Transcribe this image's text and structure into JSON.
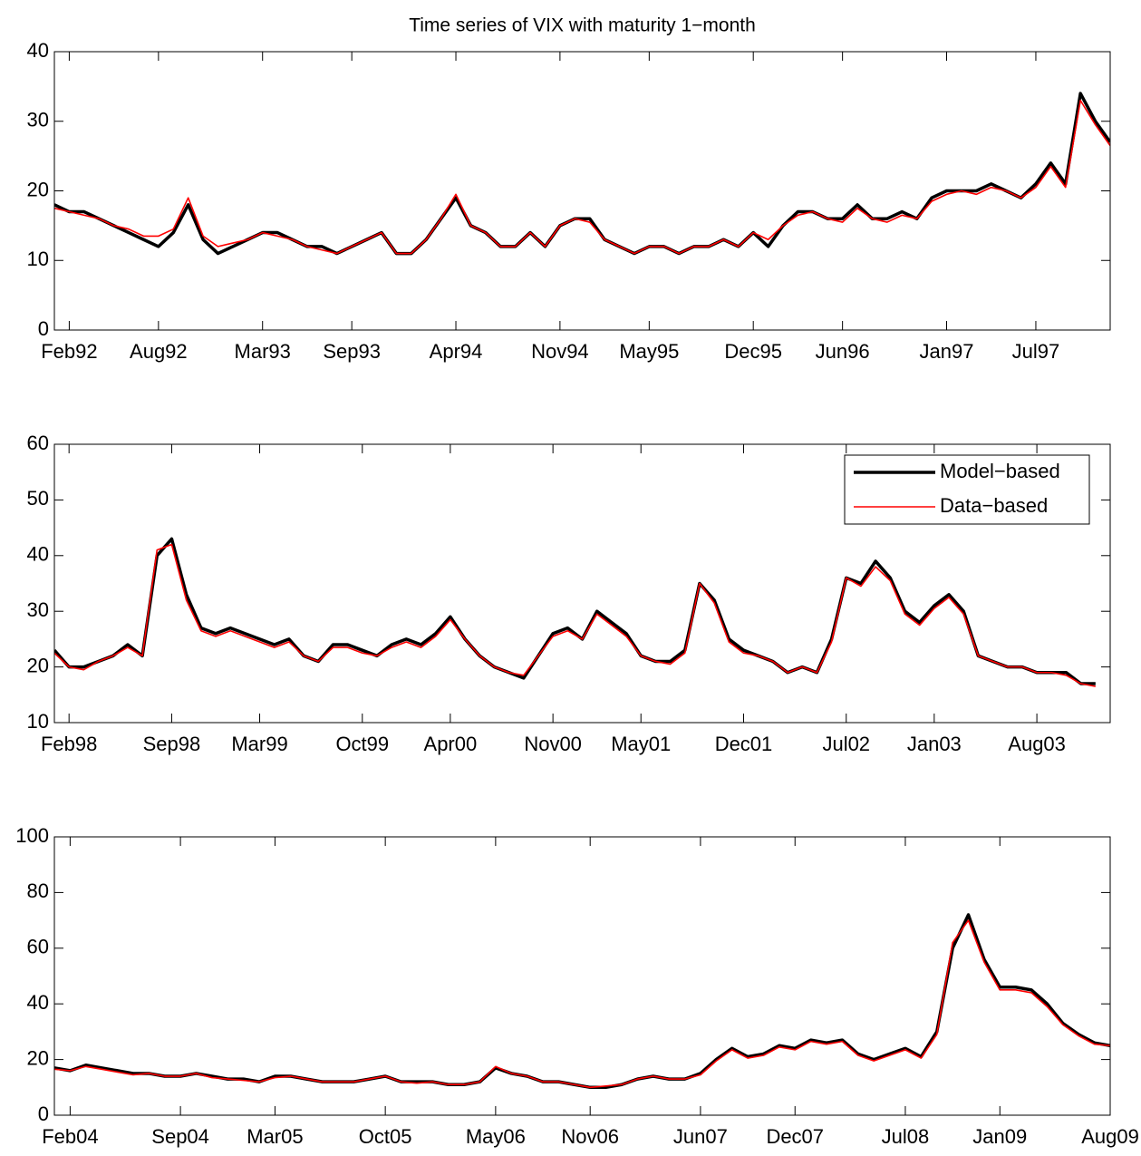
{
  "chart_data": [
    {
      "type": "line",
      "title": "Time series of VIX with maturity 1−month",
      "x": [
        "1992-01",
        "1992-02",
        "1992-03",
        "1992-04",
        "1992-05",
        "1992-06",
        "1992-07",
        "1992-08",
        "1992-09",
        "1992-10",
        "1992-11",
        "1992-12",
        "1993-01",
        "1993-02",
        "1993-03",
        "1993-04",
        "1993-05",
        "1993-06",
        "1993-07",
        "1993-08",
        "1993-09",
        "1993-10",
        "1993-11",
        "1993-12",
        "1994-01",
        "1994-02",
        "1994-03",
        "1994-04",
        "1994-05",
        "1994-06",
        "1994-07",
        "1994-08",
        "1994-09",
        "1994-10",
        "1994-11",
        "1994-12",
        "1995-01",
        "1995-02",
        "1995-03",
        "1995-04",
        "1995-05",
        "1995-06",
        "1995-07",
        "1995-08",
        "1995-09",
        "1995-10",
        "1995-11",
        "1995-12",
        "1996-01",
        "1996-02",
        "1996-03",
        "1996-04",
        "1996-05",
        "1996-06",
        "1996-07",
        "1996-08",
        "1996-09",
        "1996-10",
        "1996-11",
        "1996-12",
        "1997-01",
        "1997-02",
        "1997-03",
        "1997-04",
        "1997-05",
        "1997-06",
        "1997-07",
        "1997-08",
        "1997-09",
        "1997-10",
        "1997-11",
        "1997-12"
      ],
      "series": [
        {
          "name": "Model−based",
          "color": "#000000",
          "values": [
            18,
            17,
            17,
            16,
            15,
            14,
            13,
            12,
            14,
            18,
            13,
            11,
            12,
            13,
            14,
            14,
            13,
            12,
            12,
            11,
            12,
            13,
            14,
            11,
            11,
            13,
            16,
            19,
            15,
            14,
            12,
            12,
            14,
            12,
            15,
            16,
            16,
            13,
            12,
            11,
            12,
            12,
            11,
            12,
            12,
            13,
            12,
            14,
            12,
            15,
            17,
            17,
            16,
            16,
            18,
            16,
            16,
            17,
            16,
            19,
            20,
            20,
            20,
            21,
            20,
            19,
            21,
            24,
            21,
            34,
            30,
            27
          ]
        },
        {
          "name": "Data−based",
          "color": "#ff0000",
          "values": [
            17.5,
            17,
            16.5,
            16,
            15,
            14.5,
            13.5,
            13.5,
            14.5,
            19,
            13.5,
            12,
            12.5,
            13,
            14,
            13.5,
            13,
            12,
            11.5,
            11,
            12,
            13,
            14,
            11,
            11,
            13,
            16,
            19.5,
            15,
            14,
            12,
            12,
            14,
            12,
            15,
            16,
            15.5,
            13,
            12,
            11,
            12,
            12,
            11,
            12,
            12,
            13,
            12,
            14,
            13,
            15,
            16.5,
            17,
            16,
            15.5,
            17.5,
            16,
            15.5,
            16.5,
            16,
            18.5,
            19.5,
            20,
            19.5,
            20.5,
            20,
            19,
            20.5,
            23.5,
            20.5,
            33,
            29.5,
            26.5
          ]
        }
      ],
      "xlim": [
        "1992-01",
        "1997-12"
      ],
      "xticks": [
        {
          "value": "1992-02",
          "label": "Feb92"
        },
        {
          "value": "1992-08",
          "label": "Aug92"
        },
        {
          "value": "1993-03",
          "label": "Mar93"
        },
        {
          "value": "1993-09",
          "label": "Sep93"
        },
        {
          "value": "1994-04",
          "label": "Apr94"
        },
        {
          "value": "1994-11",
          "label": "Nov94"
        },
        {
          "value": "1995-05",
          "label": "May95"
        },
        {
          "value": "1995-12",
          "label": "Dec95"
        },
        {
          "value": "1996-06",
          "label": "Jun96"
        },
        {
          "value": "1997-01",
          "label": "Jan97"
        },
        {
          "value": "1997-07",
          "label": "Jul97"
        }
      ],
      "ylim": [
        0,
        40
      ],
      "yticks": [
        0,
        10,
        20,
        30,
        40
      ]
    },
    {
      "type": "line",
      "x": [
        "1998-01",
        "1998-02",
        "1998-03",
        "1998-04",
        "1998-05",
        "1998-06",
        "1998-07",
        "1998-08",
        "1998-09",
        "1998-10",
        "1998-11",
        "1998-12",
        "1999-01",
        "1999-02",
        "1999-03",
        "1999-04",
        "1999-05",
        "1999-06",
        "1999-07",
        "1999-08",
        "1999-09",
        "1999-10",
        "1999-11",
        "1999-12",
        "2000-01",
        "2000-02",
        "2000-03",
        "2000-04",
        "2000-05",
        "2000-06",
        "2000-07",
        "2000-08",
        "2000-09",
        "2000-10",
        "2000-11",
        "2000-12",
        "2001-01",
        "2001-02",
        "2001-03",
        "2001-04",
        "2001-05",
        "2001-06",
        "2001-07",
        "2001-08",
        "2001-09",
        "2001-10",
        "2001-11",
        "2001-12",
        "2002-01",
        "2002-02",
        "2002-03",
        "2002-04",
        "2002-05",
        "2002-06",
        "2002-07",
        "2002-08",
        "2002-09",
        "2002-10",
        "2002-11",
        "2002-12",
        "2003-01",
        "2003-02",
        "2003-03",
        "2003-04",
        "2003-05",
        "2003-06",
        "2003-07",
        "2003-08",
        "2003-09",
        "2003-10",
        "2003-11",
        "2003-12"
      ],
      "series": [
        {
          "name": "Model−based",
          "color": "#000000",
          "values": [
            23,
            20,
            20,
            21,
            22,
            24,
            22,
            40,
            43,
            33,
            27,
            26,
            27,
            26,
            25,
            24,
            25,
            22,
            21,
            24,
            24,
            23,
            22,
            24,
            25,
            24,
            26,
            29,
            25,
            22,
            20,
            19,
            18,
            22,
            26,
            27,
            25,
            30,
            28,
            26,
            22,
            21,
            21,
            23,
            35,
            32,
            25,
            23,
            22,
            21,
            19,
            20,
            19,
            25,
            36,
            35,
            39,
            36,
            30,
            28,
            31,
            33,
            30,
            22,
            21,
            20,
            20,
            19,
            19,
            19,
            17,
            17
          ]
        },
        {
          "name": "Data−based",
          "color": "#ff0000",
          "values": [
            22.5,
            20,
            19.5,
            21,
            22,
            23.5,
            22,
            41,
            42,
            32,
            26.5,
            25.5,
            26.5,
            25.5,
            24.5,
            23.5,
            24.5,
            22,
            21,
            23.5,
            23.5,
            22.5,
            22,
            23.5,
            24.5,
            23.5,
            25.5,
            28.5,
            25,
            22,
            20,
            19,
            18.5,
            22,
            25.5,
            26.5,
            25,
            29.5,
            27.5,
            25.5,
            22,
            21,
            20.5,
            22.5,
            35,
            31.5,
            24.5,
            22.5,
            22,
            21,
            19,
            20,
            19,
            24.5,
            36,
            34.5,
            38,
            35.5,
            29.5,
            27.5,
            30.5,
            32.5,
            29.5,
            22,
            21,
            20,
            20,
            19,
            19,
            18.5,
            17,
            16.5
          ]
        }
      ],
      "xlim": [
        "1998-01",
        "2004-01"
      ],
      "xticks": [
        {
          "value": "1998-02",
          "label": "Feb98"
        },
        {
          "value": "1998-09",
          "label": "Sep98"
        },
        {
          "value": "1999-03",
          "label": "Mar99"
        },
        {
          "value": "1999-10",
          "label": "Oct99"
        },
        {
          "value": "2000-04",
          "label": "Apr00"
        },
        {
          "value": "2000-11",
          "label": "Nov00"
        },
        {
          "value": "2001-05",
          "label": "May01"
        },
        {
          "value": "2001-12",
          "label": "Dec01"
        },
        {
          "value": "2002-07",
          "label": "Jul02"
        },
        {
          "value": "2003-01",
          "label": "Jan03"
        },
        {
          "value": "2003-08",
          "label": "Aug03"
        }
      ],
      "ylim": [
        10,
        60
      ],
      "yticks": [
        10,
        20,
        30,
        40,
        50,
        60
      ],
      "legend": "upper right"
    },
    {
      "type": "line",
      "x": [
        "2004-01",
        "2004-02",
        "2004-03",
        "2004-04",
        "2004-05",
        "2004-06",
        "2004-07",
        "2004-08",
        "2004-09",
        "2004-10",
        "2004-11",
        "2004-12",
        "2005-01",
        "2005-02",
        "2005-03",
        "2005-04",
        "2005-05",
        "2005-06",
        "2005-07",
        "2005-08",
        "2005-09",
        "2005-10",
        "2005-11",
        "2005-12",
        "2006-01",
        "2006-02",
        "2006-03",
        "2006-04",
        "2006-05",
        "2006-06",
        "2006-07",
        "2006-08",
        "2006-09",
        "2006-10",
        "2006-11",
        "2006-12",
        "2007-01",
        "2007-02",
        "2007-03",
        "2007-04",
        "2007-05",
        "2007-06",
        "2007-07",
        "2007-08",
        "2007-09",
        "2007-10",
        "2007-11",
        "2007-12",
        "2008-01",
        "2008-02",
        "2008-03",
        "2008-04",
        "2008-05",
        "2008-06",
        "2008-07",
        "2008-08",
        "2008-09",
        "2008-10",
        "2008-11",
        "2008-12",
        "2009-01",
        "2009-02",
        "2009-03",
        "2009-04",
        "2009-05",
        "2009-06",
        "2009-07",
        "2009-08"
      ],
      "series": [
        {
          "name": "Model−based",
          "color": "#000000",
          "values": [
            17,
            16,
            18,
            17,
            16,
            15,
            15,
            14,
            14,
            15,
            14,
            13,
            13,
            12,
            14,
            14,
            13,
            12,
            12,
            12,
            13,
            14,
            12,
            12,
            12,
            11,
            11,
            12,
            17,
            15,
            14,
            12,
            12,
            11,
            10,
            10,
            11,
            13,
            14,
            13,
            13,
            15,
            20,
            24,
            21,
            22,
            25,
            24,
            27,
            26,
            27,
            22,
            20,
            22,
            24,
            21,
            30,
            60,
            72,
            56,
            46,
            46,
            45,
            40,
            33,
            29,
            26,
            25
          ]
        },
        {
          "name": "Data−based",
          "color": "#ff0000",
          "values": [
            16.5,
            16,
            17.5,
            16.5,
            15.5,
            14.5,
            15,
            14,
            14,
            15,
            13.5,
            13,
            12.5,
            12,
            13.5,
            14,
            13,
            12,
            12,
            12,
            13,
            14,
            12,
            11.5,
            12,
            11,
            11,
            12,
            17.5,
            15,
            14,
            12,
            12,
            11,
            10,
            10.5,
            11,
            13,
            14,
            13,
            13,
            14.5,
            19.5,
            23.5,
            20.5,
            21.5,
            24.5,
            23.5,
            26.5,
            25.5,
            26.5,
            21.5,
            19.5,
            21.5,
            23.5,
            20.5,
            29,
            62,
            70,
            55,
            45,
            45,
            44,
            39,
            32.5,
            28.5,
            25.5,
            25
          ]
        }
      ],
      "xlim": [
        "2004-01",
        "2009-08"
      ],
      "xticks": [
        {
          "value": "2004-02",
          "label": "Feb04"
        },
        {
          "value": "2004-09",
          "label": "Sep04"
        },
        {
          "value": "2005-03",
          "label": "Mar05"
        },
        {
          "value": "2005-10",
          "label": "Oct05"
        },
        {
          "value": "2006-05",
          "label": "May06"
        },
        {
          "value": "2006-11",
          "label": "Nov06"
        },
        {
          "value": "2007-06",
          "label": "Jun07"
        },
        {
          "value": "2007-12",
          "label": "Dec07"
        },
        {
          "value": "2008-07",
          "label": "Jul08"
        },
        {
          "value": "2009-01",
          "label": "Jan09"
        },
        {
          "value": "2009-08",
          "label": "Aug09"
        }
      ],
      "ylim": [
        0,
        100
      ],
      "yticks": [
        0,
        20,
        40,
        60,
        80,
        100
      ]
    }
  ]
}
